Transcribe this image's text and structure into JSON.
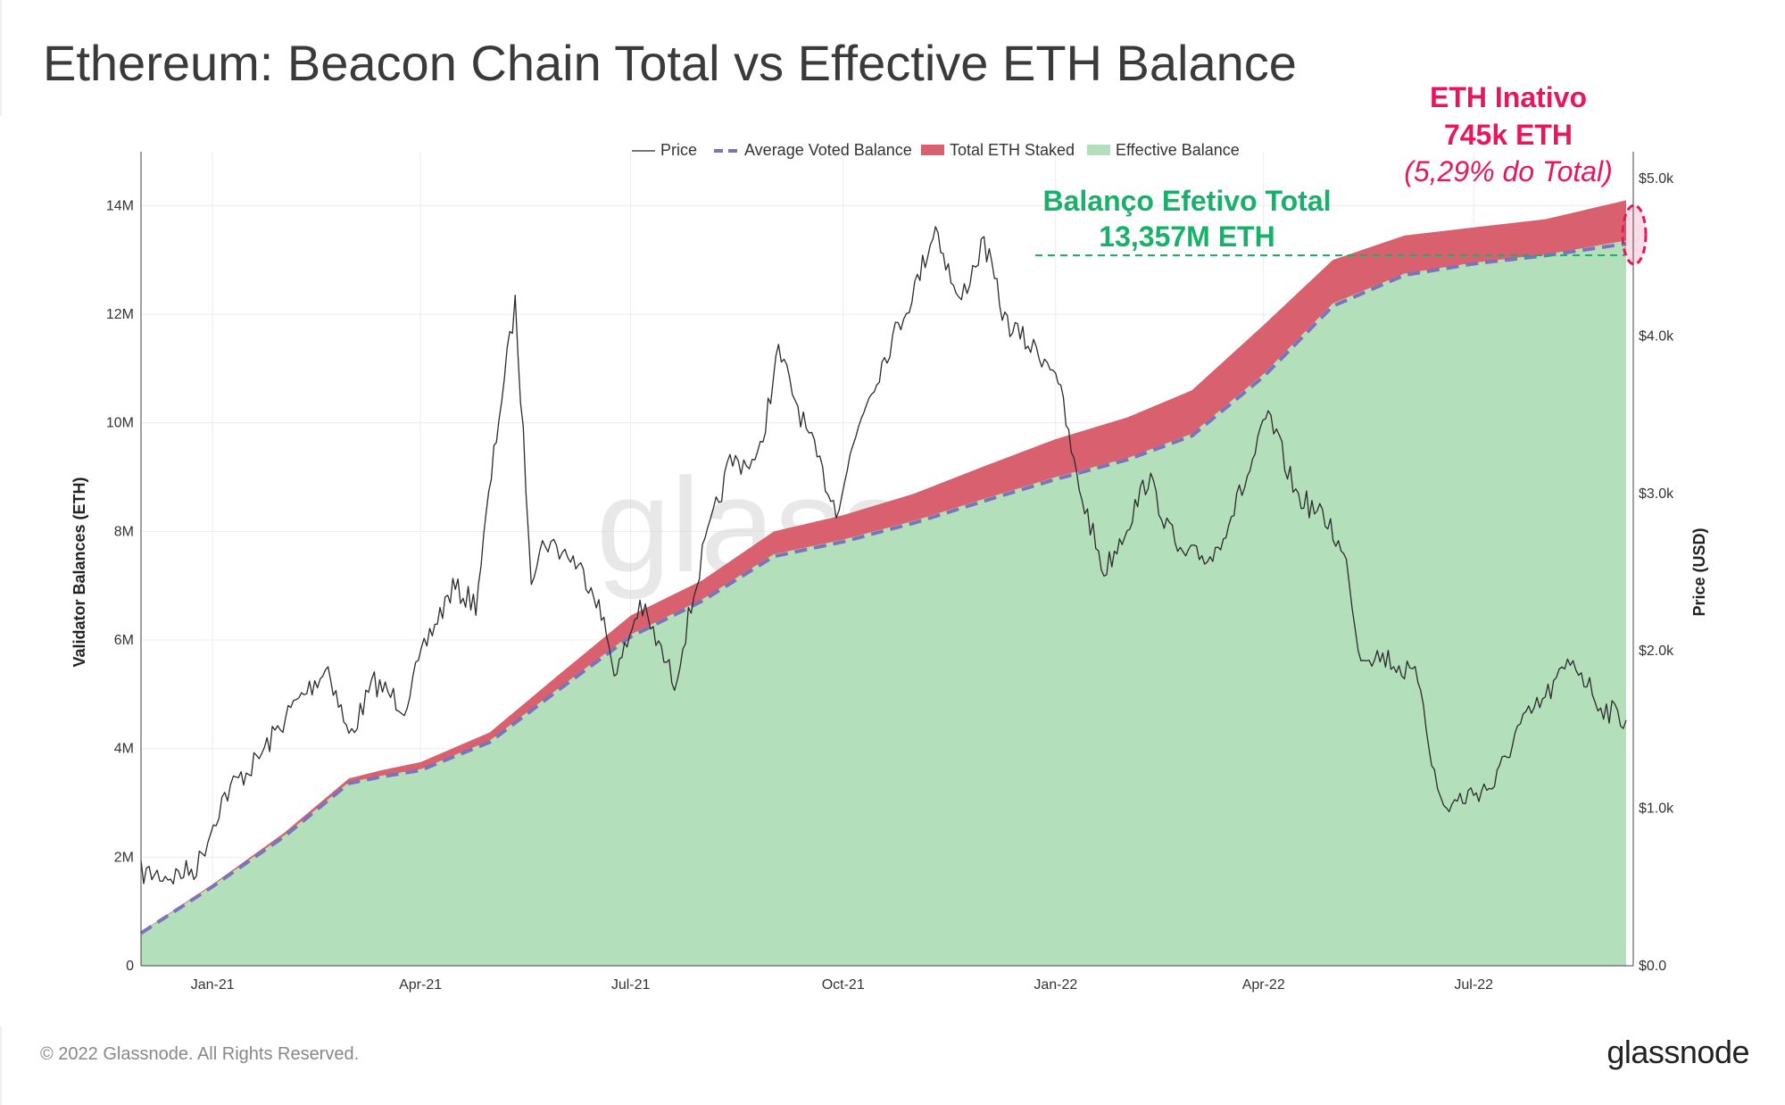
{
  "title": "Ethereum: Beacon Chain Total vs Effective ETH Balance",
  "footer": {
    "copyright": "© 2022 Glassnode. All Rights Reserved.",
    "logo": "glassnode"
  },
  "watermark": "glassnode",
  "annotations": {
    "inactive_title": "ETH Inativo",
    "inactive_value": "745k ETH",
    "inactive_pct": "(5,29% do Total)",
    "effective_title": "Balanço Efetivo Total",
    "effective_value": "13,357M ETH"
  },
  "colors": {
    "price": "#2b2b2b",
    "avg_voted": "#7b74b8",
    "total_staked": "#d9606e",
    "effective": "#b3e0bb",
    "annotation_red": "#e8175d",
    "annotation_green": "#18b06a"
  },
  "chart_data": {
    "type": "area",
    "ylabel": "Validator Balances (ETH)",
    "y2label": "Price (USD)",
    "ylim": [
      0,
      14500000
    ],
    "y2lim": [
      0,
      5000
    ],
    "yticks": [
      "0",
      "2M",
      "4M",
      "6M",
      "8M",
      "10M",
      "12M",
      "14M"
    ],
    "y2ticks": [
      "$0.0",
      "$1.0k",
      "$2.0k",
      "$3.0k",
      "$4.0k",
      "$5.0k"
    ],
    "xticks": [
      "Jan-21",
      "Apr-21",
      "Jul-21",
      "Oct-21",
      "Jan-22",
      "Apr-22",
      "Jul-22"
    ],
    "xlim": [
      "2020-12-01",
      "2022-09-05"
    ],
    "legend": [
      "Price",
      "Average Voted Balance",
      "Total ETH Staked",
      "Effective Balance"
    ],
    "legend_position": "top",
    "series": [
      {
        "name": "Total ETH Staked",
        "x": [
          "2020-12-01",
          "2021-01-01",
          "2021-02-01",
          "2021-03-01",
          "2021-03-15",
          "2021-04-01",
          "2021-05-01",
          "2021-06-01",
          "2021-07-01",
          "2021-08-01",
          "2021-09-01",
          "2021-10-01",
          "2021-11-01",
          "2021-12-01",
          "2022-01-01",
          "2022-02-01",
          "2022-03-01",
          "2022-04-01",
          "2022-05-01",
          "2022-06-01",
          "2022-07-01",
          "2022-08-01",
          "2022-09-05"
        ],
        "values": [
          620000,
          1500000,
          2450000,
          3450000,
          3600000,
          3750000,
          4300000,
          5400000,
          6450000,
          7100000,
          8000000,
          8300000,
          8700000,
          9200000,
          9700000,
          10100000,
          10600000,
          11800000,
          13000000,
          13450000,
          13600000,
          13750000,
          14100000
        ]
      },
      {
        "name": "Effective Balance",
        "x": [
          "2020-12-01",
          "2021-01-01",
          "2021-02-01",
          "2021-03-01",
          "2021-03-15",
          "2021-04-01",
          "2021-05-01",
          "2021-06-01",
          "2021-07-01",
          "2021-08-01",
          "2021-09-01",
          "2021-10-01",
          "2021-11-01",
          "2021-12-01",
          "2022-01-01",
          "2022-02-01",
          "2022-03-01",
          "2022-04-01",
          "2022-05-01",
          "2022-06-01",
          "2022-07-01",
          "2022-08-01",
          "2022-09-05"
        ],
        "values": [
          610000,
          1480000,
          2400000,
          3380000,
          3500000,
          3620000,
          4150000,
          5150000,
          6100000,
          6750000,
          7580000,
          7850000,
          8200000,
          8600000,
          9000000,
          9350000,
          9800000,
          10900000,
          12200000,
          12750000,
          12950000,
          13100000,
          13357000
        ]
      },
      {
        "name": "Average Voted Balance",
        "x": [
          "2020-12-01",
          "2021-01-01",
          "2021-02-01",
          "2021-03-01",
          "2021-03-15",
          "2021-04-01",
          "2021-05-01",
          "2021-06-01",
          "2021-07-01",
          "2021-08-01",
          "2021-09-01",
          "2021-10-01",
          "2021-11-01",
          "2021-12-01",
          "2022-01-01",
          "2022-02-01",
          "2022-03-01",
          "2022-04-01",
          "2022-05-01",
          "2022-06-01",
          "2022-07-01",
          "2022-08-01",
          "2022-09-05"
        ],
        "values": [
          600000,
          1460000,
          2380000,
          3360000,
          3480000,
          3600000,
          4120000,
          5120000,
          6060000,
          6720000,
          7540000,
          7810000,
          8160000,
          8560000,
          8960000,
          9320000,
          9760000,
          10850000,
          12150000,
          12720000,
          12930000,
          13080000,
          13300000
        ]
      },
      {
        "name": "Price",
        "axis": "right",
        "x": [
          "2020-12-01",
          "2020-12-15",
          "2020-12-25",
          "2021-01-05",
          "2021-01-10",
          "2021-01-20",
          "2021-02-05",
          "2021-02-20",
          "2021-03-01",
          "2021-03-12",
          "2021-03-25",
          "2021-04-05",
          "2021-04-15",
          "2021-04-25",
          "2021-05-05",
          "2021-05-12",
          "2021-05-19",
          "2021-05-25",
          "2021-06-05",
          "2021-06-15",
          "2021-06-25",
          "2021-07-05",
          "2021-07-20",
          "2021-08-01",
          "2021-08-13",
          "2021-08-25",
          "2021-09-03",
          "2021-09-15",
          "2021-09-28",
          "2021-10-10",
          "2021-10-20",
          "2021-11-01",
          "2021-11-10",
          "2021-11-20",
          "2021-12-01",
          "2021-12-10",
          "2021-12-20",
          "2022-01-01",
          "2022-01-10",
          "2022-01-22",
          "2022-02-01",
          "2022-02-10",
          "2022-02-24",
          "2022-03-10",
          "2022-03-25",
          "2022-04-03",
          "2022-04-15",
          "2022-04-30",
          "2022-05-08",
          "2022-05-12",
          "2022-05-25",
          "2022-06-08",
          "2022-06-14",
          "2022-06-18",
          "2022-07-01",
          "2022-07-10",
          "2022-07-20",
          "2022-08-01",
          "2022-08-13",
          "2022-08-25",
          "2022-09-05"
        ],
        "values": [
          590,
          570,
          620,
          1050,
          1150,
          1300,
          1650,
          1900,
          1450,
          1800,
          1650,
          2100,
          2400,
          2300,
          3500,
          4200,
          2500,
          2700,
          2600,
          2400,
          1850,
          2300,
          1800,
          2600,
          3200,
          3200,
          3900,
          3400,
          2900,
          3550,
          3900,
          4300,
          4700,
          4200,
          4600,
          4100,
          3950,
          3800,
          3100,
          2500,
          2800,
          3100,
          2600,
          2600,
          3100,
          3500,
          3000,
          2800,
          2500,
          2000,
          1950,
          1800,
          1200,
          1000,
          1100,
          1150,
          1500,
          1700,
          1950,
          1650,
          1560
        ]
      }
    ]
  }
}
